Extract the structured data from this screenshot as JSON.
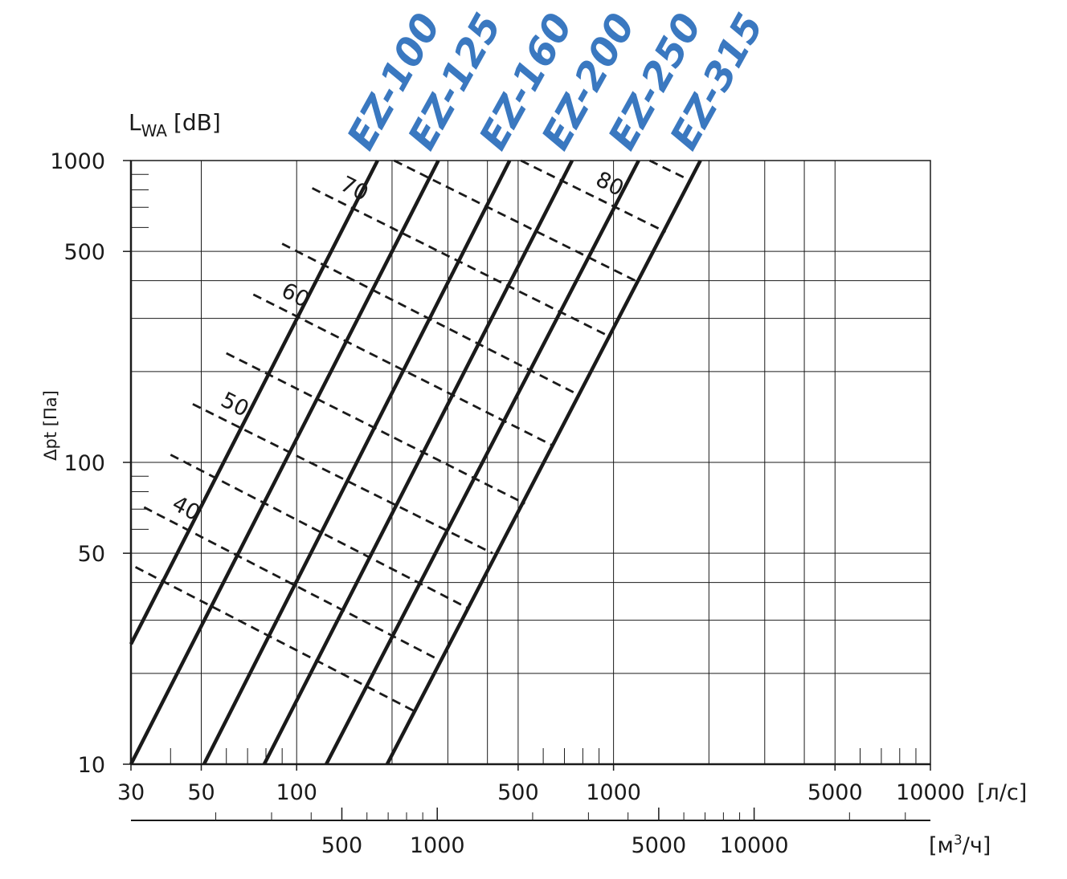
{
  "chart_data": {
    "type": "line",
    "log_x": true,
    "log_y": true,
    "y_label": "Δpt [Па]",
    "x_unit": "[л/с]",
    "sound_label": {
      "main": "L",
      "sub": "WA",
      "unit": "[dB]"
    },
    "x2_unit": {
      "pre": "[м",
      "sup": "3",
      "post": "/ч]"
    },
    "xlim": [
      30,
      10000
    ],
    "ylim": [
      10,
      1000
    ],
    "xticks": [
      30,
      50,
      100,
      500,
      1000,
      5000,
      10000
    ],
    "yticks": [
      10,
      50,
      100,
      500,
      1000
    ],
    "xgrid": [
      50,
      100,
      200,
      300,
      400,
      500,
      1000,
      2000,
      3000,
      4000,
      5000
    ],
    "ygrid": [
      20,
      30,
      40,
      50,
      100,
      200,
      300,
      400,
      500
    ],
    "xminor": [
      40,
      60,
      70,
      80,
      90,
      600,
      700,
      800,
      900,
      6000,
      7000,
      8000,
      9000
    ],
    "yminor": [
      60,
      70,
      80,
      90,
      600,
      700,
      800,
      900
    ],
    "x2lim": [
      108,
      36000
    ],
    "x2ticks": [
      500,
      1000,
      5000,
      10000
    ],
    "x2minor": [
      200,
      300,
      400,
      600,
      700,
      800,
      900,
      2000,
      3000,
      4000,
      6000,
      7000,
      8000,
      9000,
      20000,
      30000
    ],
    "label_color": "#3a78c0",
    "series": [
      {
        "name": "EZ-100",
        "color": "#1a1a1a",
        "x": [
          30,
          180
        ],
        "y": [
          25,
          1000
        ]
      },
      {
        "name": "EZ-125",
        "color": "#1a1a1a",
        "x": [
          30,
          280
        ],
        "y": [
          10,
          1000
        ]
      },
      {
        "name": "EZ-160",
        "color": "#1a1a1a",
        "x": [
          51,
          470
        ],
        "y": [
          10,
          1000
        ]
      },
      {
        "name": "EZ-200",
        "color": "#1a1a1a",
        "x": [
          79,
          740
        ],
        "y": [
          10,
          1000
        ]
      },
      {
        "name": "EZ-250",
        "color": "#1a1a1a",
        "x": [
          124,
          1200
        ],
        "y": [
          10,
          1000
        ]
      },
      {
        "name": "EZ-315",
        "color": "#1a1a1a",
        "x": [
          193,
          1880
        ],
        "y": [
          10,
          1000
        ]
      }
    ],
    "sound_lines": [
      {
        "x": [
          31,
          235
        ],
        "y": [
          45,
          15
        ]
      },
      {
        "label": 40,
        "x": [
          33,
          285
        ],
        "y": [
          71,
          22
        ]
      },
      {
        "x": [
          40,
          345
        ],
        "y": [
          106,
          33
        ]
      },
      {
        "label": 50,
        "x": [
          47,
          415
        ],
        "y": [
          156,
          50
        ]
      },
      {
        "x": [
          60,
          525
        ],
        "y": [
          230,
          73
        ]
      },
      {
        "label": 60,
        "x": [
          73,
          640
        ],
        "y": [
          360,
          114
        ]
      },
      {
        "x": [
          90,
          770
        ],
        "y": [
          530,
          168
        ]
      },
      {
        "label": 70,
        "x": [
          112,
          980
        ],
        "y": [
          810,
          260
        ]
      },
      {
        "x": [
          203,
          1200
        ],
        "y": [
          1000,
          395
        ]
      },
      {
        "label": 80,
        "x": [
          510,
          1460
        ],
        "y": [
          1000,
          580
        ]
      },
      {
        "x": [
          1300,
          1740
        ],
        "y": [
          1000,
          860
        ]
      }
    ]
  }
}
